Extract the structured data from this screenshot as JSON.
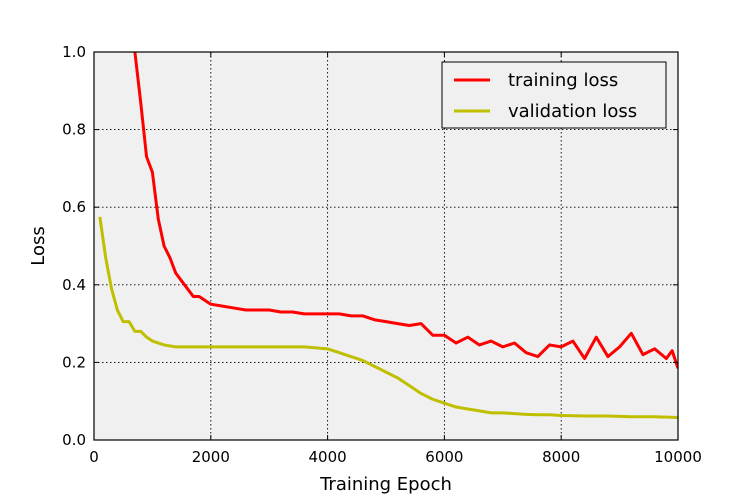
{
  "chart_data": {
    "type": "line",
    "xlabel": "Training Epoch",
    "ylabel": "Loss",
    "xlim": [
      0,
      10000
    ],
    "ylim": [
      0.0,
      1.0
    ],
    "xticks": [
      0,
      2000,
      4000,
      6000,
      8000,
      10000
    ],
    "yticks": [
      0.0,
      0.2,
      0.4,
      0.6,
      0.8,
      1.0
    ],
    "xtick_labels": [
      "0",
      "2000",
      "4000",
      "6000",
      "8000",
      "10000"
    ],
    "ytick_labels": [
      "0.0",
      "0.2",
      "0.4",
      "0.6",
      "0.8",
      "1.0"
    ],
    "grid": true,
    "plot_background": "#f0f0f0",
    "legend_position": "top-right",
    "series": [
      {
        "name": "training loss",
        "color": "#ff0000",
        "x": [
          700,
          800,
          900,
          1000,
          1100,
          1200,
          1300,
          1400,
          1500,
          1600,
          1700,
          1800,
          1900,
          2000,
          2200,
          2400,
          2600,
          2800,
          3000,
          3200,
          3400,
          3600,
          3800,
          4000,
          4200,
          4400,
          4600,
          4800,
          5000,
          5200,
          5400,
          5600,
          5800,
          6000,
          6200,
          6400,
          6600,
          6800,
          7000,
          7200,
          7400,
          7600,
          7800,
          8000,
          8200,
          8400,
          8600,
          8800,
          9000,
          9200,
          9400,
          9600,
          9800,
          9900,
          10000
        ],
        "y": [
          1.0,
          0.87,
          0.73,
          0.69,
          0.57,
          0.5,
          0.47,
          0.43,
          0.41,
          0.39,
          0.37,
          0.37,
          0.36,
          0.35,
          0.345,
          0.34,
          0.335,
          0.335,
          0.335,
          0.33,
          0.33,
          0.325,
          0.325,
          0.325,
          0.325,
          0.32,
          0.32,
          0.31,
          0.305,
          0.3,
          0.295,
          0.3,
          0.27,
          0.27,
          0.25,
          0.265,
          0.245,
          0.255,
          0.24,
          0.25,
          0.225,
          0.215,
          0.245,
          0.24,
          0.255,
          0.21,
          0.265,
          0.215,
          0.24,
          0.275,
          0.22,
          0.235,
          0.21,
          0.23,
          0.185
        ]
      },
      {
        "name": "validation loss",
        "color": "#bfbf00",
        "x": [
          100,
          200,
          300,
          400,
          500,
          600,
          700,
          800,
          900,
          1000,
          1200,
          1400,
          1600,
          1800,
          2000,
          2400,
          2800,
          3200,
          3600,
          4000,
          4200,
          4400,
          4600,
          4800,
          5000,
          5200,
          5400,
          5600,
          5800,
          6000,
          6200,
          6400,
          6600,
          6800,
          7000,
          7200,
          7400,
          7600,
          7800,
          8000,
          8400,
          8800,
          9200,
          9600,
          10000
        ],
        "y": [
          0.575,
          0.47,
          0.39,
          0.335,
          0.305,
          0.305,
          0.28,
          0.28,
          0.265,
          0.255,
          0.245,
          0.24,
          0.24,
          0.24,
          0.24,
          0.24,
          0.24,
          0.24,
          0.24,
          0.235,
          0.225,
          0.215,
          0.205,
          0.19,
          0.175,
          0.16,
          0.14,
          0.12,
          0.105,
          0.095,
          0.085,
          0.08,
          0.075,
          0.07,
          0.07,
          0.068,
          0.066,
          0.065,
          0.065,
          0.063,
          0.062,
          0.062,
          0.06,
          0.06,
          0.058
        ]
      }
    ]
  }
}
